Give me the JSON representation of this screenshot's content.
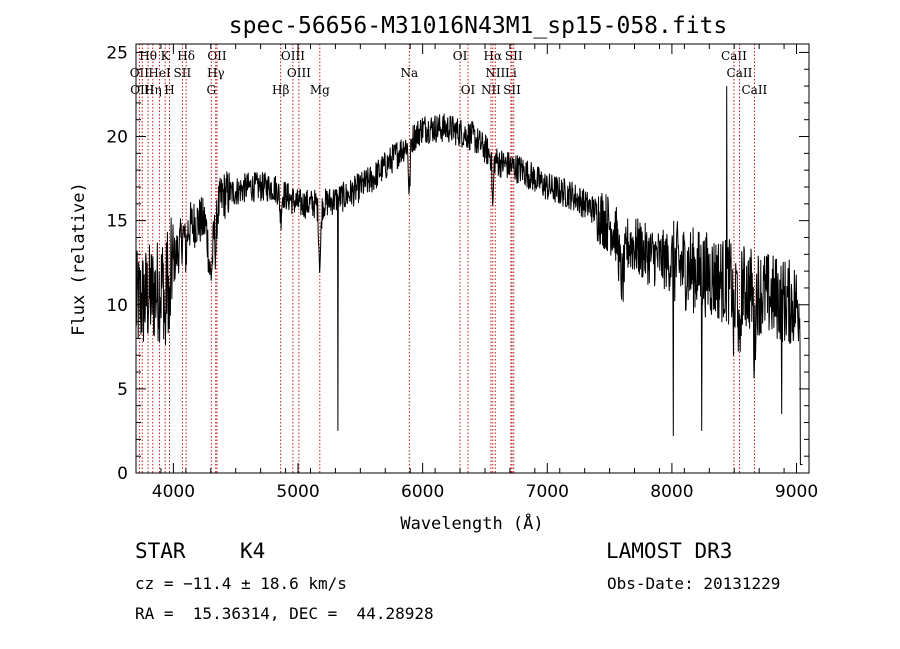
{
  "chart_data": {
    "type": "line",
    "title": "spec-56656-M31016N43M1_sp15-058.fits",
    "xlabel": "Wavelength (Å)",
    "ylabel": "Flux (relative)",
    "xlim": [
      3700,
      9100
    ],
    "ylim": [
      0,
      25.5
    ],
    "x_ticks": [
      4000,
      5000,
      6000,
      7000,
      8000,
      9000
    ],
    "y_ticks": [
      0,
      5,
      10,
      15,
      20,
      25
    ],
    "continuum_knots": {
      "x": [
        3700,
        3800,
        3900,
        4000,
        4100,
        4200,
        4300,
        4400,
        4600,
        4800,
        5000,
        5200,
        5400,
        5600,
        5800,
        6000,
        6200,
        6400,
        6600,
        6800,
        7000,
        7200,
        7400,
        7600,
        7800,
        8000,
        8200,
        8400,
        8600,
        8800,
        9000
      ],
      "y": [
        10,
        10.5,
        11,
        12.5,
        14.5,
        15,
        14.8,
        16.5,
        17,
        17,
        16,
        16,
        16.5,
        17.5,
        19,
        20.5,
        20.5,
        20,
        18.5,
        18,
        17,
        16.5,
        15.5,
        14,
        13,
        12.5,
        12,
        11.5,
        11,
        10.5,
        10
      ]
    },
    "absorption_features": [
      {
        "x": 3934,
        "depth": 3,
        "width": 8
      },
      {
        "x": 3969,
        "depth": 3,
        "width": 8
      },
      {
        "x": 4101,
        "depth": 1.5,
        "width": 10
      },
      {
        "x": 4300,
        "depth": 3,
        "width": 25
      },
      {
        "x": 4340,
        "depth": 2,
        "width": 8
      },
      {
        "x": 4861,
        "depth": 1.5,
        "width": 10
      },
      {
        "x": 5175,
        "depth": 3.5,
        "width": 12
      },
      {
        "x": 5893,
        "depth": 3,
        "width": 10
      },
      {
        "x": 6563,
        "depth": 3,
        "width": 8
      },
      {
        "x": 7600,
        "depth": 2.5,
        "width": 30
      },
      {
        "x": 8498,
        "depth": 3,
        "width": 10
      },
      {
        "x": 8542,
        "depth": 4.5,
        "width": 10
      },
      {
        "x": 8662,
        "depth": 3.5,
        "width": 10
      }
    ],
    "spikes": [
      {
        "x": 8010,
        "y": 2.2
      },
      {
        "x": 8240,
        "y": 2.5
      },
      {
        "x": 8440,
        "y": 23
      },
      {
        "x": 8880,
        "y": 3.5
      },
      {
        "x": 5320,
        "y": 2.5
      }
    ],
    "line_markers": [
      {
        "label": "Hθ",
        "x": 3797,
        "row": 0
      },
      {
        "label": "K",
        "x": 3934,
        "row": 0
      },
      {
        "label": "Hδ",
        "x": 4102,
        "row": 0
      },
      {
        "label": "OII",
        "x": 4350,
        "row": 0
      },
      {
        "label": "OIII",
        "x": 4959,
        "row": 0
      },
      {
        "label": "OI",
        "x": 6300,
        "row": 0
      },
      {
        "label": "Hα",
        "x": 6563,
        "row": 0
      },
      {
        "label": "SII",
        "x": 6731,
        "row": 0
      },
      {
        "label": "CaII",
        "x": 8498,
        "row": 0
      },
      {
        "label": "OII",
        "x": 3727,
        "row": 1
      },
      {
        "label": "HeI",
        "x": 3889,
        "row": 1
      },
      {
        "label": "SII",
        "x": 4072,
        "row": 1
      },
      {
        "label": "Hγ",
        "x": 4340,
        "row": 1
      },
      {
        "label": "OIII",
        "x": 5007,
        "row": 1
      },
      {
        "label": "Na",
        "x": 5893,
        "row": 1
      },
      {
        "label": "NII",
        "x": 6583,
        "row": 1
      },
      {
        "label": "Li",
        "x": 6708,
        "row": 1
      },
      {
        "label": "CaII",
        "x": 8542,
        "row": 1
      },
      {
        "label": "OIII",
        "x": 3750,
        "row": 2
      },
      {
        "label": "Hη",
        "x": 3835,
        "row": 2
      },
      {
        "label": "H",
        "x": 3969,
        "row": 2
      },
      {
        "label": "G",
        "x": 4304,
        "row": 2
      },
      {
        "label": "Hβ",
        "x": 4861,
        "row": 2
      },
      {
        "label": "Mg",
        "x": 5175,
        "row": 2
      },
      {
        "label": "OI",
        "x": 6364,
        "row": 2
      },
      {
        "label": "NII",
        "x": 6548,
        "row": 2
      },
      {
        "label": "SII",
        "x": 6717,
        "row": 2
      },
      {
        "label": "CaII",
        "x": 8662,
        "row": 2
      }
    ],
    "marker_color": "#c00000",
    "line_color": "#000000"
  },
  "info": {
    "class": "STAR",
    "subclass": "K4",
    "survey": "LAMOST DR3",
    "cz": "cz = −11.4 ± 18.6 km/s",
    "obs_date": "Obs-Date: 20131229",
    "coords": "RA =  15.36314, DEC =  44.28928"
  }
}
